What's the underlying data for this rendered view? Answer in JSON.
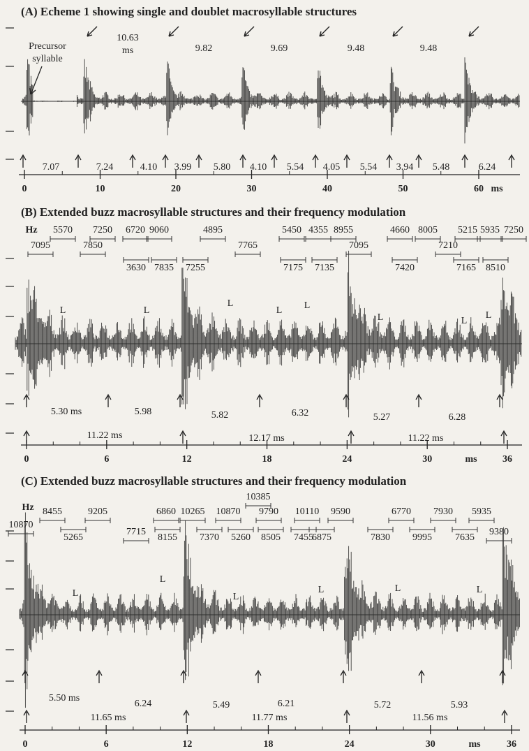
{
  "panels": [
    {
      "title": "(A)  Echeme 1 showing single and doublet macrosyllable structures",
      "labels": [
        "Precursor",
        "syllable",
        "10.63",
        "ms",
        "9.82",
        "9.69",
        "9.48",
        "9.48"
      ],
      "intervals": [
        "7.07",
        "7.24",
        "4.10",
        "3.99",
        "5.80",
        "4.10",
        "5.54",
        "4.05",
        "5.54",
        "3.94",
        "5.48",
        "6.24"
      ],
      "ticks": [
        0,
        10,
        20,
        30,
        40,
        50,
        60
      ],
      "unit": "ms"
    },
    {
      "title": "(B)  Extended buzz macrosyllable structures and their frequency modulation",
      "hz": "Hz",
      "freqs": [
        "5570",
        "7250",
        "6720",
        "9060",
        "4895",
        "5450",
        "4355",
        "8955",
        "4660",
        "8005",
        "5215",
        "5935",
        "7250",
        "7095",
        "7850",
        "7765",
        "7095",
        "7210",
        "3630",
        "7835",
        "7255",
        "7175",
        "7135",
        "7420",
        "7165",
        "8510"
      ],
      "l_marks": [
        "L",
        "L",
        "L",
        "L",
        "L",
        "L",
        "L",
        "L"
      ],
      "intervals": [
        "5.30 ms",
        "5.98",
        "5.82",
        "6.32",
        "5.27",
        "6.28"
      ],
      "periods": [
        "11.22 ms",
        "12.17 ms",
        "11.22 ms"
      ],
      "ticks": [
        0,
        6,
        12,
        18,
        24,
        30,
        36
      ],
      "unit": "ms"
    },
    {
      "title": "(C)  Extended buzz macrosyllable structures and their frequency modulation",
      "hz": "Hz",
      "freqs": [
        "10385",
        "8455",
        "9205",
        "6860",
        "10265",
        "10870",
        "9790",
        "10110",
        "9590",
        "6770",
        "7930",
        "5935",
        "10870",
        "7715",
        "9380",
        "5265",
        "8155",
        "7370",
        "5260",
        "8505",
        "7455",
        "6875",
        "7830",
        "9995",
        "7635"
      ],
      "l_marks": [
        "L",
        "L",
        "L",
        "L",
        "L",
        "L"
      ],
      "intervals": [
        "5.50 ms",
        "6.24",
        "5.49",
        "6.21",
        "5.72",
        "5.93"
      ],
      "periods": [
        "11.65 ms",
        "11.77 ms",
        "11.56 ms"
      ],
      "ticks": [
        0,
        6,
        12,
        18,
        24,
        30,
        36
      ],
      "unit": "ms"
    }
  ]
}
